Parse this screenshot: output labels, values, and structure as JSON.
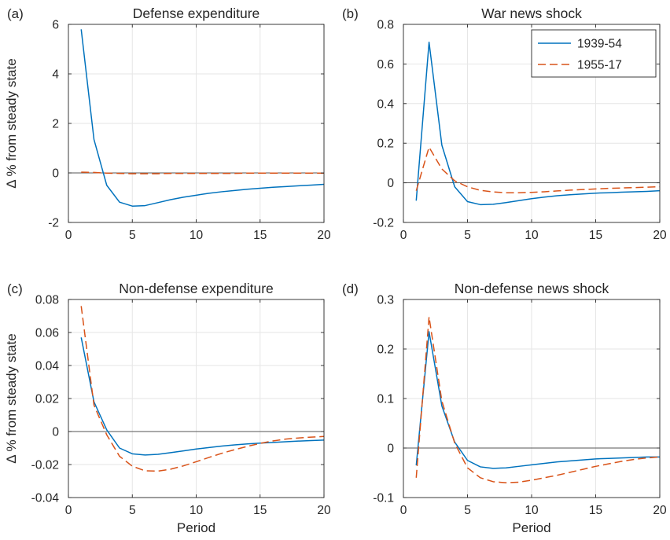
{
  "chart_data": [
    {
      "type": "line",
      "panel_label": "(a)",
      "title": "Defense expenditure",
      "xlabel": "",
      "ylabel": "Δ % from steady state",
      "xlim": [
        0,
        20
      ],
      "ylim": [
        -2,
        6
      ],
      "xticks": [
        0,
        5,
        10,
        15,
        20
      ],
      "yticks": [
        -2,
        0,
        2,
        4,
        6
      ],
      "grid": true,
      "zero_line": true,
      "x": [
        1,
        2,
        3,
        4,
        5,
        6,
        7,
        8,
        9,
        10,
        11,
        12,
        13,
        14,
        15,
        16,
        17,
        18,
        19,
        20
      ],
      "series": [
        {
          "name": "1939-54",
          "color": "#0072BD",
          "style": "solid",
          "values": [
            5.8,
            1.35,
            -0.5,
            -1.18,
            -1.34,
            -1.32,
            -1.2,
            -1.08,
            -0.98,
            -0.9,
            -0.82,
            -0.76,
            -0.71,
            -0.66,
            -0.62,
            -0.58,
            -0.55,
            -0.52,
            -0.49,
            -0.46
          ]
        },
        {
          "name": "1955-17",
          "color": "#D95319",
          "style": "dashed",
          "values": [
            0.03,
            0.02,
            -0.01,
            -0.02,
            -0.03,
            -0.03,
            -0.03,
            -0.02,
            -0.02,
            -0.02,
            -0.02,
            -0.02,
            -0.02,
            -0.01,
            -0.01,
            -0.01,
            -0.01,
            -0.01,
            -0.01,
            -0.01
          ]
        }
      ]
    },
    {
      "type": "line",
      "panel_label": "(b)",
      "title": "War news shock",
      "xlabel": "",
      "ylabel": "",
      "xlim": [
        0,
        20
      ],
      "ylim": [
        -0.2,
        0.8
      ],
      "xticks": [
        0,
        5,
        10,
        15,
        20
      ],
      "yticks": [
        -0.2,
        0,
        0.2,
        0.4,
        0.6,
        0.8
      ],
      "grid": true,
      "zero_line": true,
      "legend": {
        "placement": "top-right",
        "entries": [
          "1939-54",
          "1955-17"
        ]
      },
      "x": [
        1,
        2,
        3,
        4,
        5,
        6,
        7,
        8,
        9,
        10,
        11,
        12,
        13,
        14,
        15,
        16,
        17,
        18,
        19,
        20
      ],
      "series": [
        {
          "name": "1939-54",
          "color": "#0072BD",
          "style": "solid",
          "values": [
            -0.09,
            0.71,
            0.19,
            -0.02,
            -0.095,
            -0.11,
            -0.108,
            -0.1,
            -0.09,
            -0.08,
            -0.072,
            -0.065,
            -0.06,
            -0.056,
            -0.052,
            -0.05,
            -0.047,
            -0.045,
            -0.043,
            -0.04
          ]
        },
        {
          "name": "1955-17",
          "color": "#D95319",
          "style": "dashed",
          "values": [
            -0.04,
            0.18,
            0.07,
            0.01,
            -0.02,
            -0.038,
            -0.046,
            -0.05,
            -0.05,
            -0.048,
            -0.045,
            -0.041,
            -0.037,
            -0.034,
            -0.031,
            -0.028,
            -0.026,
            -0.024,
            -0.022,
            -0.02
          ]
        }
      ]
    },
    {
      "type": "line",
      "panel_label": "(c)",
      "title": "Non-defense expenditure",
      "xlabel": "Period",
      "ylabel": "Δ % from steady state",
      "xlim": [
        0,
        20
      ],
      "ylim": [
        -0.04,
        0.08
      ],
      "xticks": [
        0,
        5,
        10,
        15,
        20
      ],
      "yticks": [
        -0.04,
        -0.02,
        0,
        0.02,
        0.04,
        0.06,
        0.08
      ],
      "grid": true,
      "zero_line": true,
      "x": [
        1,
        2,
        3,
        4,
        5,
        6,
        7,
        8,
        9,
        10,
        11,
        12,
        13,
        14,
        15,
        16,
        17,
        18,
        19,
        20
      ],
      "series": [
        {
          "name": "1939-54",
          "color": "#0072BD",
          "style": "solid",
          "values": [
            0.057,
            0.018,
            0.001,
            -0.01,
            -0.0135,
            -0.0142,
            -0.0138,
            -0.0128,
            -0.0117,
            -0.0106,
            -0.0097,
            -0.0088,
            -0.0081,
            -0.0075,
            -0.007,
            -0.0066,
            -0.0062,
            -0.0058,
            -0.0055,
            -0.0052
          ]
        },
        {
          "name": "1955-17",
          "color": "#D95319",
          "style": "dashed",
          "values": [
            0.076,
            0.016,
            -0.002,
            -0.015,
            -0.021,
            -0.0238,
            -0.024,
            -0.0228,
            -0.0208,
            -0.0183,
            -0.0157,
            -0.0132,
            -0.011,
            -0.009,
            -0.0072,
            -0.0057,
            -0.0046,
            -0.0039,
            -0.0034,
            -0.003
          ]
        }
      ]
    },
    {
      "type": "line",
      "panel_label": "(d)",
      "title": "Non-defense news shock",
      "xlabel": "Period",
      "ylabel": "",
      "xlim": [
        0,
        20
      ],
      "ylim": [
        -0.1,
        0.3
      ],
      "xticks": [
        0,
        5,
        10,
        15,
        20
      ],
      "yticks": [
        -0.1,
        0,
        0.1,
        0.2,
        0.3
      ],
      "grid": true,
      "zero_line": true,
      "x": [
        1,
        2,
        3,
        4,
        5,
        6,
        7,
        8,
        9,
        10,
        11,
        12,
        13,
        14,
        15,
        16,
        17,
        18,
        19,
        20
      ],
      "series": [
        {
          "name": "1939-54",
          "color": "#0072BD",
          "style": "solid",
          "values": [
            -0.035,
            0.235,
            0.085,
            0.012,
            -0.025,
            -0.038,
            -0.041,
            -0.04,
            -0.037,
            -0.034,
            -0.031,
            -0.028,
            -0.026,
            -0.024,
            -0.022,
            -0.021,
            -0.02,
            -0.019,
            -0.018,
            -0.018
          ]
        },
        {
          "name": "1955-17",
          "color": "#D95319",
          "style": "dashed",
          "values": [
            -0.06,
            0.265,
            0.095,
            0.01,
            -0.04,
            -0.06,
            -0.068,
            -0.07,
            -0.069,
            -0.065,
            -0.06,
            -0.055,
            -0.049,
            -0.043,
            -0.037,
            -0.032,
            -0.027,
            -0.023,
            -0.02,
            -0.018
          ]
        }
      ]
    }
  ]
}
